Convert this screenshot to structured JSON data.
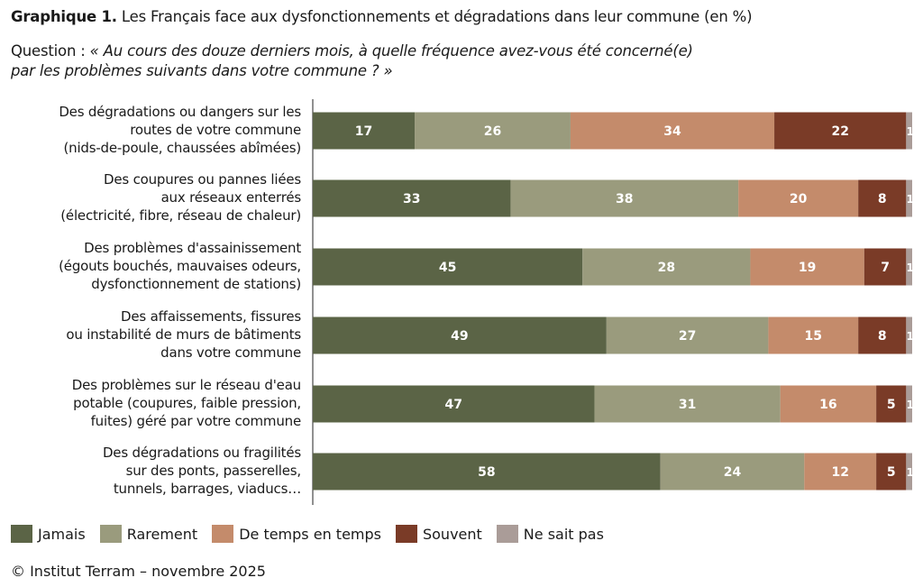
{
  "chart_data": {
    "type": "bar",
    "orientation": "horizontal",
    "stacked": true,
    "title_prefix": "Graphique 1.",
    "title": "Les Français face aux dysfonctionnements et dégradations dans leur commune (en %)",
    "question_label": "Question :",
    "question": "« Au cours des douze derniers mois, à quelle fréquence avez-vous été concerné(e)\npar les problèmes suivants dans votre commune ? »",
    "categories": [
      "Des dégradations ou dangers sur les\nroutes de votre commune\n(nids-de-poule, chaussées abîmées)",
      "Des coupures ou pannes liées\naux réseaux enterrés\n(électricité, fibre, réseau de chaleur)",
      "Des problèmes d'assainissement\n(égouts bouchés, mauvaises odeurs,\ndysfonctionnement de stations)",
      "Des affaissements, fissures\nou instabilité de murs de bâtiments\ndans votre commune",
      "Des problèmes sur le réseau d'eau\npotable (coupures, faible pression,\nfuites) géré par votre commune",
      "Des dégradations ou fragilités\nsur des ponts, passerelles,\ntunnels, barrages, viaducs…"
    ],
    "series": [
      {
        "name": "Jamais",
        "color": "#5b6446",
        "values": [
          17,
          33,
          45,
          49,
          47,
          58
        ]
      },
      {
        "name": "Rarement",
        "color": "#9a9b7d",
        "values": [
          26,
          38,
          28,
          27,
          31,
          24
        ]
      },
      {
        "name": "De temps en temps",
        "color": "#c48b6b",
        "values": [
          34,
          20,
          19,
          15,
          16,
          12
        ]
      },
      {
        "name": "Souvent",
        "color": "#7a3b27",
        "values": [
          22,
          8,
          7,
          8,
          5,
          5
        ]
      },
      {
        "name": "Ne sait pas",
        "color": "#aa9c98",
        "values": [
          1,
          1,
          1,
          1,
          1,
          1
        ]
      }
    ],
    "xlim": [
      0,
      100
    ],
    "grid": false,
    "legend": "bottom",
    "source": "© Institut Terram – novembre 2025"
  }
}
